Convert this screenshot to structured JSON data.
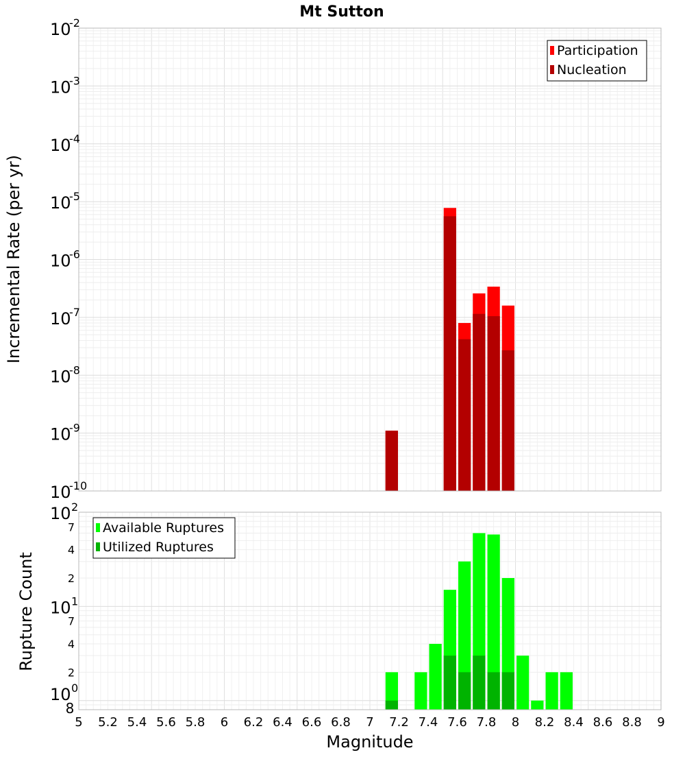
{
  "title": "Mt Sutton",
  "x_ticks": [
    "5",
    "5.2",
    "5.4",
    "5.6",
    "5.8",
    "6",
    "6.2",
    "6.4",
    "6.6",
    "6.8",
    "7",
    "7.2",
    "7.4",
    "7.6",
    "7.8",
    "8",
    "8.2",
    "8.4",
    "8.6",
    "8.8",
    "9"
  ],
  "top_y_ticks": [
    {
      "base": "10",
      "exp": "-2"
    },
    {
      "base": "10",
      "exp": "-3"
    },
    {
      "base": "10",
      "exp": "-4"
    },
    {
      "base": "10",
      "exp": "-5"
    },
    {
      "base": "10",
      "exp": "-6"
    },
    {
      "base": "10",
      "exp": "-7"
    },
    {
      "base": "10",
      "exp": "-8"
    },
    {
      "base": "10",
      "exp": "-9"
    },
    {
      "base": "10",
      "exp": "-10"
    }
  ],
  "bottom_y_ticks": {
    "major": [
      {
        "base": "10",
        "exp": "2"
      },
      {
        "base": "10",
        "exp": "1"
      },
      {
        "base": "10",
        "exp": "0"
      }
    ],
    "minor": [
      "7",
      "4",
      "2",
      "7",
      "4",
      "2"
    ],
    "edge": "8"
  },
  "chart_data": [
    {
      "type": "bar",
      "ylabel": "Incremental Rate (per yr)",
      "xlim": [
        5,
        9
      ],
      "ylim": [
        1e-10,
        0.01
      ],
      "yscale": "log",
      "grid": true,
      "legend_position": "top-right",
      "bar_width": 0.1,
      "colors": {
        "Participation": "#ff0000",
        "Nucleation": "#b30000"
      },
      "x": [
        7.15,
        7.55,
        7.65,
        7.75,
        7.85,
        7.95
      ],
      "series": [
        {
          "name": "Participation",
          "values": [
            1.1e-09,
            7.8e-06,
            8e-08,
            2.6e-07,
            3.4e-07,
            1.6e-07
          ]
        },
        {
          "name": "Nucleation",
          "values": [
            1.1e-09,
            5.6e-06,
            4.2e-08,
            1.15e-07,
            1.05e-07,
            2.7e-08
          ]
        }
      ]
    },
    {
      "type": "bar",
      "xlabel": "Magnitude",
      "ylabel": "Rupture Count",
      "xlim": [
        5,
        9
      ],
      "ylim": [
        0.8,
        100
      ],
      "yscale": "log",
      "grid": true,
      "legend_position": "top-left",
      "bar_width": 0.1,
      "colors": {
        "Available Ruptures": "#00ff00",
        "Utilized Ruptures": "#00b300"
      },
      "x": [
        7.15,
        7.35,
        7.45,
        7.55,
        7.65,
        7.75,
        7.85,
        7.95,
        8.05,
        8.15,
        8.25,
        8.35
      ],
      "series": [
        {
          "name": "Available Ruptures",
          "values": [
            2,
            2,
            4,
            15,
            30,
            60,
            58,
            20,
            3,
            1,
            2,
            2
          ]
        },
        {
          "name": "Utilized Ruptures",
          "values": [
            1,
            0,
            0,
            3,
            2,
            3,
            2,
            2,
            0,
            0,
            0,
            0
          ]
        }
      ]
    }
  ]
}
